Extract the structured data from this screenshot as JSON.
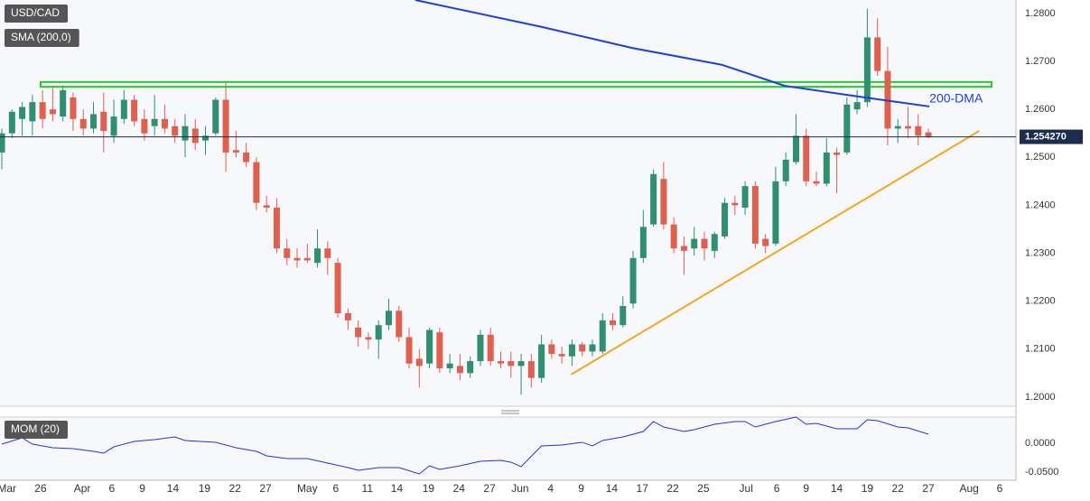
{
  "chart_data": [
    {
      "type": "candlestick",
      "series_name": "USD/CAD",
      "up_color": "#2f8f6f",
      "down_color": "#e0604f",
      "open": [
        1.251,
        1.255,
        1.258,
        1.2575,
        1.2615,
        1.26,
        1.2585,
        1.2625,
        1.258,
        1.256,
        1.2595,
        1.2545,
        1.258,
        1.262,
        1.258,
        1.2565,
        1.258,
        1.2565,
        1.2535,
        1.256,
        1.2535,
        1.255,
        1.262,
        1.2515,
        1.251,
        1.249,
        1.24,
        1.2395,
        1.231,
        1.229,
        1.229,
        1.228,
        1.231,
        1.228,
        1.2175,
        1.2145,
        1.2125,
        1.212,
        1.215,
        1.218,
        1.2125,
        1.208,
        1.207,
        1.2135,
        1.206,
        1.2065,
        1.205,
        1.2075,
        1.213,
        1.2075,
        1.2075,
        1.2065,
        1.2075,
        1.204,
        1.211,
        1.209,
        1.2085,
        1.211,
        1.2095,
        1.2095,
        1.216,
        1.215,
        1.2195,
        1.229,
        1.236,
        1.2455,
        1.236,
        1.2315,
        1.231,
        1.233,
        1.2305,
        1.2335,
        1.2405,
        1.2395,
        1.244,
        1.233,
        1.232,
        1.245,
        1.249,
        1.2545,
        1.245,
        1.2445,
        1.251,
        1.251,
        1.26,
        1.2615,
        1.275,
        1.268,
        1.256,
        1.2565,
        1.2565,
        1.2552
      ],
      "high": [
        1.256,
        1.26,
        1.2615,
        1.263,
        1.264,
        1.2645,
        1.265,
        1.2635,
        1.26,
        1.2615,
        1.2635,
        1.262,
        1.264,
        1.263,
        1.26,
        1.263,
        1.261,
        1.258,
        1.259,
        1.258,
        1.2565,
        1.2625,
        1.2655,
        1.2555,
        1.253,
        1.25,
        1.242,
        1.2415,
        1.233,
        1.231,
        1.232,
        1.235,
        1.2325,
        1.229,
        1.2185,
        1.216,
        1.2135,
        1.216,
        1.2205,
        1.219,
        1.2145,
        1.21,
        1.2145,
        1.2145,
        1.209,
        1.209,
        1.2085,
        1.214,
        1.2145,
        1.2095,
        1.2095,
        1.209,
        1.209,
        1.213,
        1.212,
        1.2105,
        1.212,
        1.2115,
        1.212,
        1.2175,
        1.2175,
        1.221,
        1.2305,
        1.239,
        1.2475,
        1.249,
        1.2375,
        1.2335,
        1.2355,
        1.2345,
        1.2345,
        1.2415,
        1.242,
        1.245,
        1.245,
        1.234,
        1.248,
        1.251,
        1.259,
        1.256,
        1.247,
        1.254,
        1.252,
        1.2625,
        1.264,
        1.281,
        1.279,
        1.273,
        1.258,
        1.2605,
        1.259,
        1.256
      ],
      "low": [
        1.2475,
        1.254,
        1.2545,
        1.2545,
        1.256,
        1.2575,
        1.2575,
        1.2555,
        1.2545,
        1.255,
        1.251,
        1.253,
        1.257,
        1.2565,
        1.2535,
        1.2545,
        1.255,
        1.253,
        1.25,
        1.2515,
        1.2505,
        1.2545,
        1.247,
        1.25,
        1.248,
        1.239,
        1.2385,
        1.23,
        1.2275,
        1.227,
        1.228,
        1.227,
        1.2255,
        1.2165,
        1.214,
        1.2105,
        1.21,
        1.208,
        1.214,
        1.2115,
        1.206,
        1.202,
        1.206,
        1.205,
        1.205,
        1.2035,
        1.204,
        1.2065,
        1.2065,
        1.206,
        1.204,
        1.2005,
        1.202,
        1.203,
        1.208,
        1.207,
        1.2065,
        1.2085,
        1.2085,
        1.209,
        1.214,
        1.2145,
        1.2185,
        1.228,
        1.2355,
        1.235,
        1.23,
        1.2255,
        1.2295,
        1.2285,
        1.229,
        1.233,
        1.238,
        1.238,
        1.231,
        1.23,
        1.2315,
        1.244,
        1.2485,
        1.244,
        1.244,
        1.244,
        1.2425,
        1.2505,
        1.259,
        1.2605,
        1.267,
        1.2525,
        1.253,
        1.254,
        1.2525,
        1.254
      ],
      "close": [
        1.255,
        1.2595,
        1.2605,
        1.2615,
        1.258,
        1.259,
        1.264,
        1.258,
        1.256,
        1.259,
        1.2555,
        1.2585,
        1.262,
        1.2575,
        1.255,
        1.258,
        1.256,
        1.2545,
        1.2565,
        1.253,
        1.2545,
        1.262,
        1.251,
        1.251,
        1.249,
        1.2405,
        1.2395,
        1.231,
        1.229,
        1.2285,
        1.2285,
        1.231,
        1.229,
        1.2175,
        1.216,
        1.2125,
        1.212,
        1.215,
        1.218,
        1.2125,
        1.207,
        1.2065,
        1.214,
        1.206,
        1.207,
        1.205,
        1.2075,
        1.213,
        1.2075,
        1.207,
        1.2065,
        1.2075,
        1.204,
        1.211,
        1.209,
        1.2085,
        1.211,
        1.2095,
        1.211,
        1.216,
        1.215,
        1.219,
        1.229,
        1.2355,
        1.2465,
        1.236,
        1.231,
        1.2305,
        1.233,
        1.231,
        1.234,
        1.2405,
        1.24,
        1.244,
        1.232,
        1.2315,
        1.245,
        1.2495,
        1.2545,
        1.245,
        1.2445,
        1.251,
        1.2505,
        1.261,
        1.2615,
        1.275,
        1.268,
        1.256,
        1.2565,
        1.256,
        1.2545,
        1.25427
      ],
      "last_price": {
        "value": 1.25427,
        "label": "1.254270"
      },
      "sma": {
        "name": "SMA (200,0)",
        "label": "200-DMA",
        "color": "#1f3fd6",
        "x": [
          40.6,
          53,
          61.9,
          70.7,
          76.9,
          84.0,
          91.1
        ],
        "values": [
          1.2828,
          1.2772,
          1.2728,
          1.2693,
          1.2649,
          1.2627,
          1.2606
        ]
      },
      "channel": {
        "color": "#22cc22",
        "x": [
          3.8,
          97.2
        ],
        "y": [
          1.2647,
          1.2657
        ]
      },
      "trendline": {
        "color": "#f5a623",
        "x": [
          55.9,
          96.0
        ],
        "y": [
          1.2047,
          1.2555
        ]
      },
      "xlim": [
        -0.18,
        99.6
      ],
      "xticks": [
        {
          "value": 0.5,
          "label": "Mar"
        },
        {
          "value": 3.8,
          "label": "26"
        },
        {
          "value": 7.9,
          "label": "Apr"
        },
        {
          "value": 10.8,
          "label": "6"
        },
        {
          "value": 13.8,
          "label": "9"
        },
        {
          "value": 16.8,
          "label": "14"
        },
        {
          "value": 19.9,
          "label": "19"
        },
        {
          "value": 22.9,
          "label": "22"
        },
        {
          "value": 25.9,
          "label": "27"
        },
        {
          "value": 30.0,
          "label": "May"
        },
        {
          "value": 32.8,
          "label": "6"
        },
        {
          "value": 35.9,
          "label": "11"
        },
        {
          "value": 38.8,
          "label": "14"
        },
        {
          "value": 41.9,
          "label": "19"
        },
        {
          "value": 44.9,
          "label": "24"
        },
        {
          "value": 47.9,
          "label": "27"
        },
        {
          "value": 50.9,
          "label": "Jun"
        },
        {
          "value": 53.9,
          "label": "4"
        },
        {
          "value": 56.9,
          "label": "9"
        },
        {
          "value": 59.9,
          "label": "14"
        },
        {
          "value": 62.9,
          "label": "17"
        },
        {
          "value": 65.9,
          "label": "22"
        },
        {
          "value": 68.9,
          "label": "25"
        },
        {
          "value": 73.1,
          "label": "Jul"
        },
        {
          "value": 76.1,
          "label": "6"
        },
        {
          "value": 79.0,
          "label": "9"
        },
        {
          "value": 82.0,
          "label": "14"
        },
        {
          "value": 85.0,
          "label": "19"
        },
        {
          "value": 88.0,
          "label": "22"
        },
        {
          "value": 91.0,
          "label": "27"
        },
        {
          "value": 95.0,
          "label": "Aug"
        },
        {
          "value": 98.0,
          "label": "6"
        }
      ],
      "ylim": [
        1.1981,
        1.2828
      ],
      "yticks": [
        {
          "value": 1.2,
          "label": "1.2000"
        },
        {
          "value": 1.21,
          "label": "1.2100"
        },
        {
          "value": 1.22,
          "label": "1.2200"
        },
        {
          "value": 1.23,
          "label": "1.2300"
        },
        {
          "value": 1.24,
          "label": "1.2400"
        },
        {
          "value": 1.25,
          "label": "1.2500"
        },
        {
          "value": 1.26,
          "label": "1.2600"
        },
        {
          "value": 1.27,
          "label": "1.2700"
        },
        {
          "value": 1.28,
          "label": "1.2800"
        }
      ],
      "grid": true
    },
    {
      "type": "line",
      "series": [
        {
          "name": "MOM (20)",
          "color": "#2233dd",
          "x": [
            0,
            2,
            3,
            5,
            7,
            9,
            10,
            11,
            13,
            15,
            17,
            18,
            21,
            23,
            25,
            26,
            28,
            30,
            32,
            34,
            35,
            37,
            39,
            41,
            42,
            43,
            45,
            47,
            49,
            50,
            51,
            53,
            55,
            57,
            58,
            59,
            61,
            63,
            64,
            65,
            67,
            68,
            70,
            72,
            73,
            74,
            76,
            78,
            79,
            80,
            82,
            84,
            85,
            86,
            88,
            89,
            91
          ],
          "values": [
            -0.0016,
            0.0094,
            -0.0016,
            -0.0078,
            -0.0094,
            -0.0141,
            -0.0172,
            -0.0063,
            0.0031,
            0.0063,
            0.0109,
            0.0047,
            0.0016,
            -0.0078,
            -0.0141,
            -0.0219,
            -0.0266,
            -0.0266,
            -0.0344,
            -0.0422,
            -0.0469,
            -0.0422,
            -0.0422,
            -0.0531,
            -0.0391,
            -0.0453,
            -0.0391,
            -0.0313,
            -0.0297,
            -0.0328,
            -0.0406,
            -0.0047,
            -0.0031,
            0.0016,
            -0.0047,
            0.0047,
            0.0109,
            0.0203,
            0.0375,
            0.0281,
            0.0203,
            0.0234,
            0.0328,
            0.0375,
            0.0375,
            0.0281,
            0.0375,
            0.0453,
            0.0328,
            0.0344,
            0.025,
            0.025,
            0.0406,
            0.0391,
            0.0281,
            0.0266,
            0.0156
          ]
        }
      ],
      "xlim": [
        -0.18,
        99.6
      ],
      "ylim": [
        -0.0641,
        0.0453
      ],
      "yticks": [
        {
          "value": 0,
          "label": "0.0000"
        },
        {
          "value": -0.05,
          "label": "-0.0500"
        }
      ],
      "grid": true
    }
  ]
}
